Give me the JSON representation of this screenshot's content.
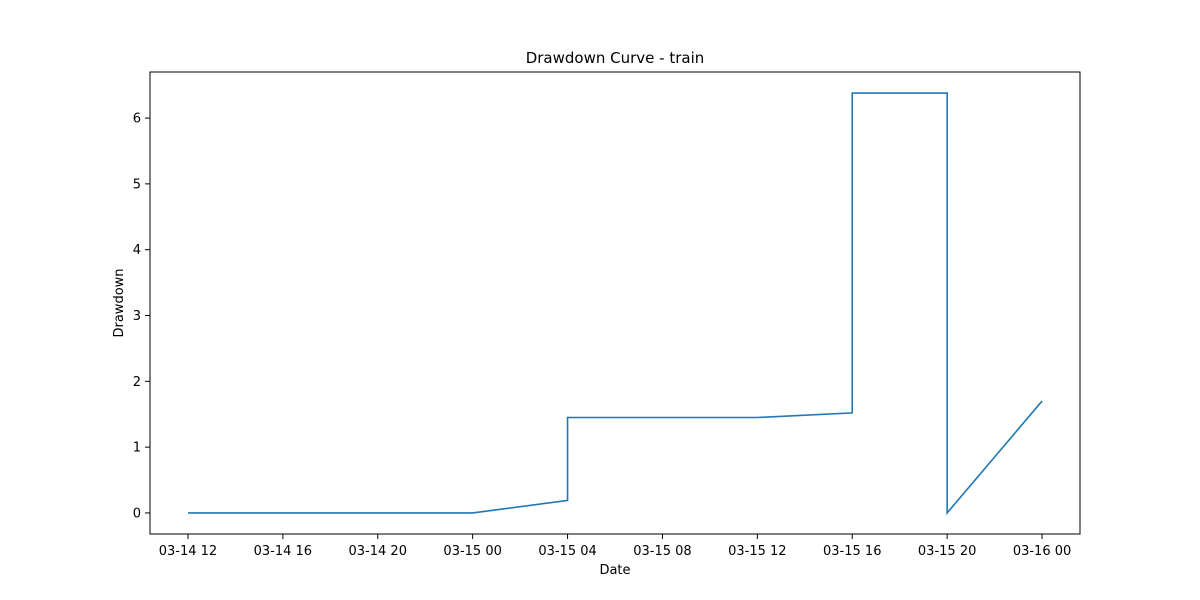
{
  "chart_data": {
    "type": "line",
    "title": "Drawdown Curve - train",
    "xlabel": "Date",
    "ylabel": "Drawdown",
    "x_unit": "datetime",
    "x_ticks": [
      {
        "value": "2024-03-14T12:00",
        "label": "03-14 12"
      },
      {
        "value": "2024-03-14T16:00",
        "label": "03-14 16"
      },
      {
        "value": "2024-03-14T20:00",
        "label": "03-14 20"
      },
      {
        "value": "2024-03-15T00:00",
        "label": "03-15 00"
      },
      {
        "value": "2024-03-15T04:00",
        "label": "03-15 04"
      },
      {
        "value": "2024-03-15T08:00",
        "label": "03-15 08"
      },
      {
        "value": "2024-03-15T12:00",
        "label": "03-15 12"
      },
      {
        "value": "2024-03-15T16:00",
        "label": "03-15 16"
      },
      {
        "value": "2024-03-15T20:00",
        "label": "03-15 20"
      },
      {
        "value": "2024-03-16T00:00",
        "label": "03-16 00"
      }
    ],
    "y_ticks": [
      0,
      1,
      2,
      3,
      4,
      5,
      6
    ],
    "xlim": [
      "2024-03-14T10:24",
      "2024-03-16T01:36"
    ],
    "ylim": [
      -0.32,
      6.7
    ],
    "grid": false,
    "series": [
      {
        "color": "#1f77b4",
        "points": [
          {
            "x": "2024-03-14T12:00",
            "y": 0.0
          },
          {
            "x": "2024-03-15T00:00",
            "y": 0.0
          },
          {
            "x": "2024-03-15T04:00",
            "y": 0.19
          },
          {
            "x": "2024-03-15T04:00",
            "y": 1.45
          },
          {
            "x": "2024-03-15T12:00",
            "y": 1.45
          },
          {
            "x": "2024-03-15T16:00",
            "y": 1.52
          },
          {
            "x": "2024-03-15T16:00",
            "y": 6.38
          },
          {
            "x": "2024-03-15T20:00",
            "y": 6.38
          },
          {
            "x": "2024-03-15T20:00",
            "y": 0.0
          },
          {
            "x": "2024-03-16T00:00",
            "y": 1.7
          }
        ]
      }
    ]
  }
}
